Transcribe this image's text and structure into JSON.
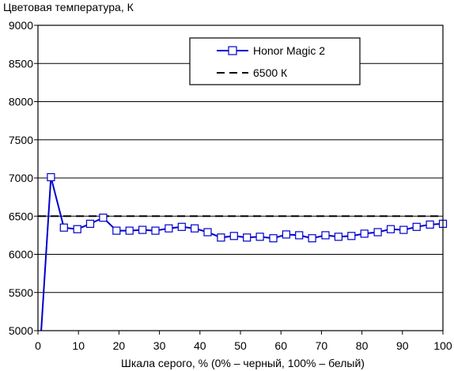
{
  "chart_data": {
    "type": "line",
    "title": "Цветовая температура, К",
    "xlabel": "Шкала серого, % (0% – черный, 100% – белый)",
    "ylabel": "",
    "xlim": [
      0,
      100
    ],
    "ylim": [
      5000,
      9000
    ],
    "x_ticks": [
      "0",
      "10",
      "20",
      "30",
      "40",
      "50",
      "60",
      "70",
      "80",
      "90",
      "100"
    ],
    "y_ticks": [
      "5000",
      "5500",
      "6000",
      "6500",
      "7000",
      "7500",
      "8000",
      "8500",
      "9000"
    ],
    "grid": true,
    "legend_position": "top-right",
    "series": [
      {
        "name": "Honor Magic 2",
        "color": "#0000cc",
        "marker": "square",
        "x": [
          3.2,
          6.4,
          9.7,
          12.9,
          16.1,
          19.4,
          22.6,
          25.8,
          29.0,
          32.3,
          35.5,
          38.7,
          41.9,
          45.2,
          48.4,
          51.6,
          54.8,
          58.1,
          61.3,
          64.5,
          67.7,
          71.0,
          74.2,
          77.4,
          80.6,
          83.9,
          87.1,
          90.3,
          93.5,
          96.8,
          100
        ],
        "y": [
          7010,
          6350,
          6330,
          6400,
          6480,
          6310,
          6310,
          6320,
          6310,
          6340,
          6360,
          6340,
          6290,
          6220,
          6240,
          6220,
          6230,
          6210,
          6260,
          6250,
          6210,
          6250,
          6230,
          6240,
          6270,
          6290,
          6330,
          6320,
          6360,
          6390,
          6400
        ],
        "lead_in": {
          "x": [
            0.8,
            3.2
          ],
          "y": [
            5000,
            7010
          ]
        }
      },
      {
        "name": "6500 К",
        "color": "#000000",
        "dashed": true,
        "x": [
          0,
          100
        ],
        "y": [
          6500,
          6500
        ]
      }
    ]
  }
}
